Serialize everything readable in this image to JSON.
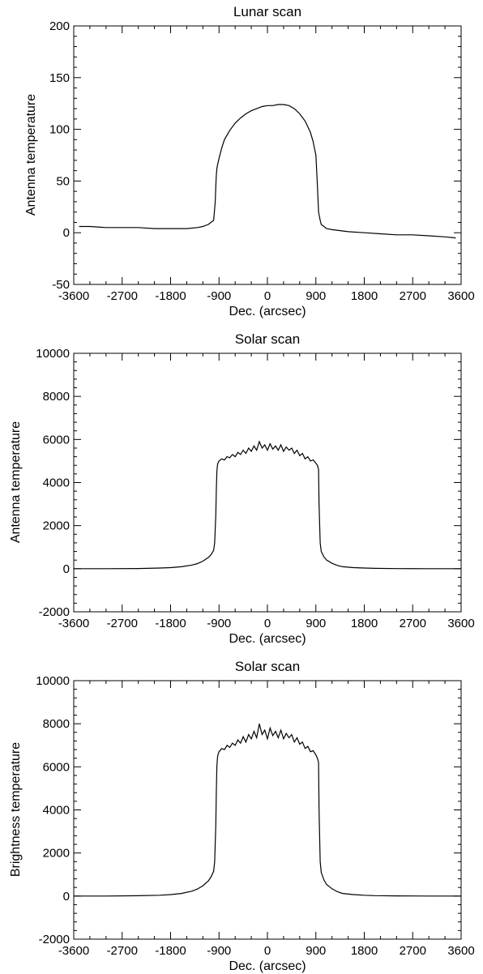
{
  "chart_data": [
    {
      "type": "line",
      "title": "Lunar scan",
      "xlabel": "Dec. (arcsec)",
      "ylabel": "Antenna temperature",
      "xlim": [
        -3600,
        3600
      ],
      "ylim": [
        -50,
        200
      ],
      "xticks": [
        "-3600",
        "-2700",
        "-1800",
        "-900",
        "0",
        "900",
        "1800",
        "2700",
        "3600"
      ],
      "yticks": [
        "-50",
        "0",
        "50",
        "100",
        "150",
        "200"
      ],
      "grid": false,
      "series": [
        {
          "x": [
            -3500,
            -3300,
            -3000,
            -2700,
            -2400,
            -2100,
            -1800,
            -1500,
            -1300,
            -1200,
            -1100,
            -1000,
            -990,
            -970,
            -960,
            -950,
            -940,
            -930,
            -900,
            -850,
            -800,
            -700,
            -600,
            -500,
            -400,
            -300,
            -200,
            -100,
            0,
            100,
            200,
            300,
            400,
            500,
            600,
            700,
            800,
            850,
            900,
            930,
            950,
            980,
            1000,
            1050,
            1100,
            1200,
            1500,
            1800,
            2100,
            2400,
            2700,
            3000,
            3300,
            3500
          ],
          "y": [
            6,
            6,
            5,
            5,
            5,
            4,
            4,
            4,
            5,
            6,
            8,
            12,
            18,
            30,
            45,
            55,
            62,
            65,
            72,
            82,
            90,
            99,
            106,
            111,
            115,
            118,
            120,
            122,
            123,
            123,
            124,
            124,
            123,
            120,
            115,
            108,
            97,
            88,
            75,
            45,
            20,
            12,
            8,
            6,
            4,
            3,
            1,
            0,
            -1,
            -2,
            -2,
            -3,
            -4,
            -5
          ]
        }
      ]
    },
    {
      "type": "line",
      "title": "Solar scan",
      "xlabel": "Dec. (arcsec)",
      "ylabel": "Antenna temperature",
      "xlim": [
        -3600,
        3600
      ],
      "ylim": [
        -2000,
        10000
      ],
      "xticks": [
        "-3600",
        "-2700",
        "-1800",
        "-900",
        "0",
        "900",
        "1800",
        "2700",
        "3600"
      ],
      "yticks": [
        "-2000",
        "0",
        "2000",
        "4000",
        "6000",
        "8000",
        "10000"
      ],
      "grid": false,
      "series": [
        {
          "x": [
            -3600,
            -3000,
            -2400,
            -2000,
            -1800,
            -1600,
            -1400,
            -1300,
            -1200,
            -1100,
            -1050,
            -1000,
            -980,
            -960,
            -950,
            -940,
            -930,
            -920,
            -900,
            -850,
            -800,
            -750,
            -700,
            -650,
            -600,
            -550,
            -500,
            -450,
            -400,
            -350,
            -300,
            -250,
            -200,
            -150,
            -100,
            -50,
            0,
            50,
            100,
            150,
            200,
            250,
            300,
            350,
            400,
            450,
            500,
            550,
            600,
            650,
            700,
            750,
            800,
            850,
            900,
            930,
            950,
            960,
            980,
            1000,
            1050,
            1100,
            1200,
            1300,
            1400,
            1600,
            1800,
            2000,
            2400,
            3000,
            3600
          ],
          "y": [
            0,
            0,
            10,
            30,
            50,
            90,
            170,
            240,
            350,
            520,
            650,
            850,
            1200,
            2500,
            3600,
            4500,
            4800,
            4900,
            5000,
            5100,
            5050,
            5200,
            5150,
            5300,
            5200,
            5400,
            5300,
            5500,
            5350,
            5600,
            5450,
            5700,
            5500,
            5900,
            5600,
            5750,
            5500,
            5800,
            5550,
            5700,
            5500,
            5750,
            5450,
            5650,
            5500,
            5600,
            5350,
            5500,
            5250,
            5350,
            5100,
            5200,
            5000,
            5050,
            4900,
            4800,
            4600,
            3000,
            1200,
            800,
            550,
            400,
            250,
            150,
            90,
            50,
            30,
            15,
            5,
            0,
            0
          ]
        }
      ]
    },
    {
      "type": "line",
      "title": "Solar scan",
      "xlabel": "Dec. (arcsec)",
      "ylabel": "Brightness temperature",
      "xlim": [
        -3600,
        3600
      ],
      "ylim": [
        -2000,
        10000
      ],
      "xticks": [
        "-3600",
        "-2700",
        "-1800",
        "-900",
        "0",
        "900",
        "1800",
        "2700",
        "3600"
      ],
      "yticks": [
        "-2000",
        "0",
        "2000",
        "4000",
        "6000",
        "8000",
        "10000"
      ],
      "grid": false,
      "series": [
        {
          "x": [
            -3600,
            -3000,
            -2400,
            -2000,
            -1800,
            -1600,
            -1400,
            -1300,
            -1200,
            -1100,
            -1050,
            -1000,
            -980,
            -960,
            -950,
            -940,
            -930,
            -920,
            -900,
            -850,
            -800,
            -750,
            -700,
            -650,
            -600,
            -550,
            -500,
            -450,
            -400,
            -350,
            -300,
            -250,
            -200,
            -150,
            -100,
            -50,
            0,
            50,
            100,
            150,
            200,
            250,
            300,
            350,
            400,
            450,
            500,
            550,
            600,
            650,
            700,
            750,
            800,
            850,
            900,
            930,
            950,
            960,
            980,
            1000,
            1050,
            1100,
            1200,
            1300,
            1400,
            1600,
            1800,
            2000,
            2400,
            3000,
            3600
          ],
          "y": [
            0,
            0,
            15,
            40,
            70,
            120,
            230,
            330,
            480,
            700,
            880,
            1150,
            1600,
            3300,
            4800,
            6000,
            6400,
            6550,
            6700,
            6850,
            6800,
            7000,
            6900,
            7100,
            7000,
            7250,
            7100,
            7400,
            7150,
            7500,
            7300,
            7650,
            7350,
            8000,
            7500,
            7700,
            7300,
            7800,
            7450,
            7650,
            7350,
            7700,
            7300,
            7550,
            7350,
            7500,
            7150,
            7350,
            7050,
            7150,
            6850,
            6950,
            6700,
            6750,
            6550,
            6400,
            6200,
            4000,
            1600,
            1100,
            750,
            540,
            340,
            200,
            120,
            70,
            40,
            20,
            7,
            0,
            0
          ]
        }
      ]
    }
  ]
}
